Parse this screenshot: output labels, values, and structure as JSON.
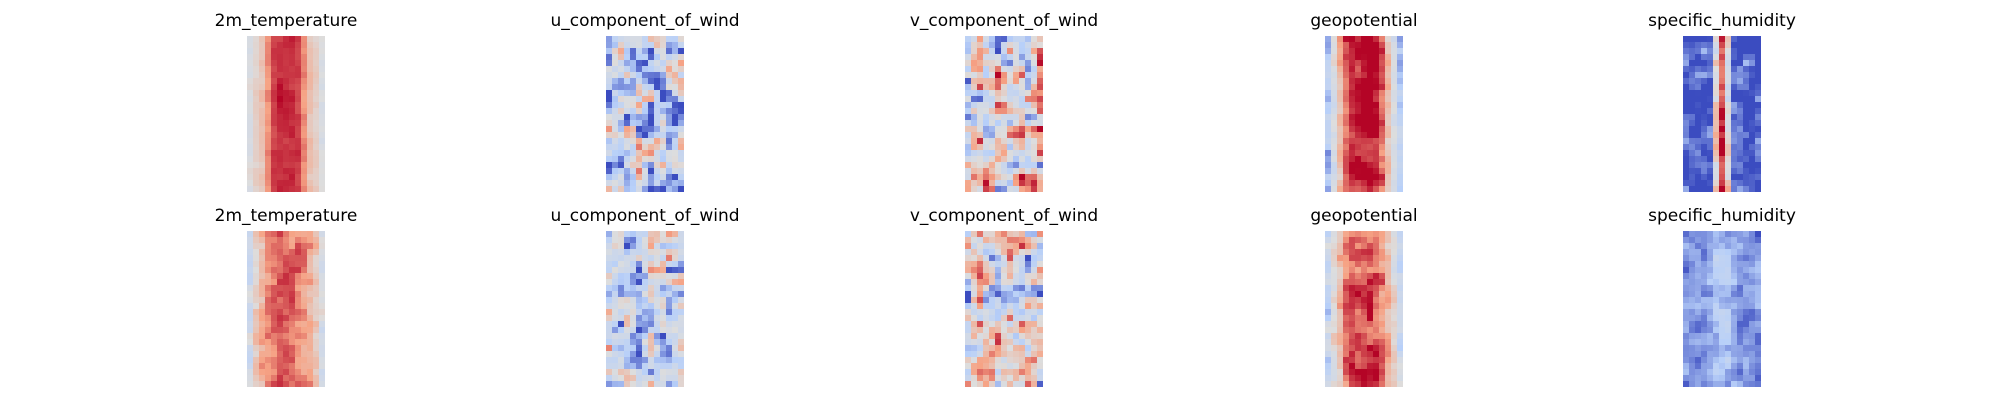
{
  "figure": {
    "colormap": [
      "#3b4cc0",
      "#b8d0f9",
      "#dddddd",
      "#f6a385",
      "#b40426"
    ]
  },
  "chart_data": [
    {
      "type": "heatmap",
      "title": "2m_temperature",
      "row": 0,
      "col": 0,
      "pattern": "band",
      "seed": 11,
      "params": {
        "base": 0.56,
        "center": 0.95,
        "width": 0.33,
        "noise": 0.05,
        "edge": 0.08
      }
    },
    {
      "type": "heatmap",
      "title": "u_component_of_wind",
      "row": 0,
      "col": 1,
      "pattern": "noise",
      "seed": 23,
      "params": {
        "base": 0.42,
        "amp": 0.42,
        "bias": -0.06
      }
    },
    {
      "type": "heatmap",
      "title": "v_component_of_wind",
      "row": 0,
      "col": 2,
      "pattern": "noise",
      "seed": 37,
      "params": {
        "base": 0.5,
        "amp": 0.46,
        "bias": 0.02
      }
    },
    {
      "type": "heatmap",
      "title": "geopotential",
      "row": 0,
      "col": 3,
      "pattern": "band",
      "seed": 41,
      "params": {
        "base": 0.38,
        "center": 1.0,
        "width": 0.4,
        "noise": 0.12,
        "edge": 0.15
      }
    },
    {
      "type": "heatmap",
      "title": "specific_humidity",
      "row": 0,
      "col": 4,
      "pattern": "band",
      "seed": 53,
      "params": {
        "base": 0.05,
        "center": 0.92,
        "width": 0.11,
        "noise": 0.18,
        "edge": 0.0
      }
    },
    {
      "type": "heatmap",
      "title": "2m_temperature",
      "row": 1,
      "col": 0,
      "pattern": "band",
      "seed": 61,
      "params": {
        "base": 0.5,
        "center": 0.82,
        "width": 0.45,
        "noise": 0.12,
        "edge": 0.1
      }
    },
    {
      "type": "heatmap",
      "title": "u_component_of_wind",
      "row": 1,
      "col": 1,
      "pattern": "noise",
      "seed": 71,
      "params": {
        "base": 0.42,
        "amp": 0.36,
        "bias": -0.04
      }
    },
    {
      "type": "heatmap",
      "title": "v_component_of_wind",
      "row": 1,
      "col": 2,
      "pattern": "noise",
      "seed": 83,
      "params": {
        "base": 0.48,
        "amp": 0.44,
        "bias": 0.02
      }
    },
    {
      "type": "heatmap",
      "title": "geopotential",
      "row": 1,
      "col": 3,
      "pattern": "band",
      "seed": 97,
      "params": {
        "base": 0.45,
        "center": 0.9,
        "width": 0.42,
        "noise": 0.14,
        "edge": 0.1
      }
    },
    {
      "type": "heatmap",
      "title": "specific_humidity",
      "row": 1,
      "col": 4,
      "pattern": "band",
      "seed": 103,
      "params": {
        "base": 0.12,
        "center": 0.24,
        "width": 0.2,
        "noise": 0.1,
        "edge": 0.0
      }
    }
  ]
}
